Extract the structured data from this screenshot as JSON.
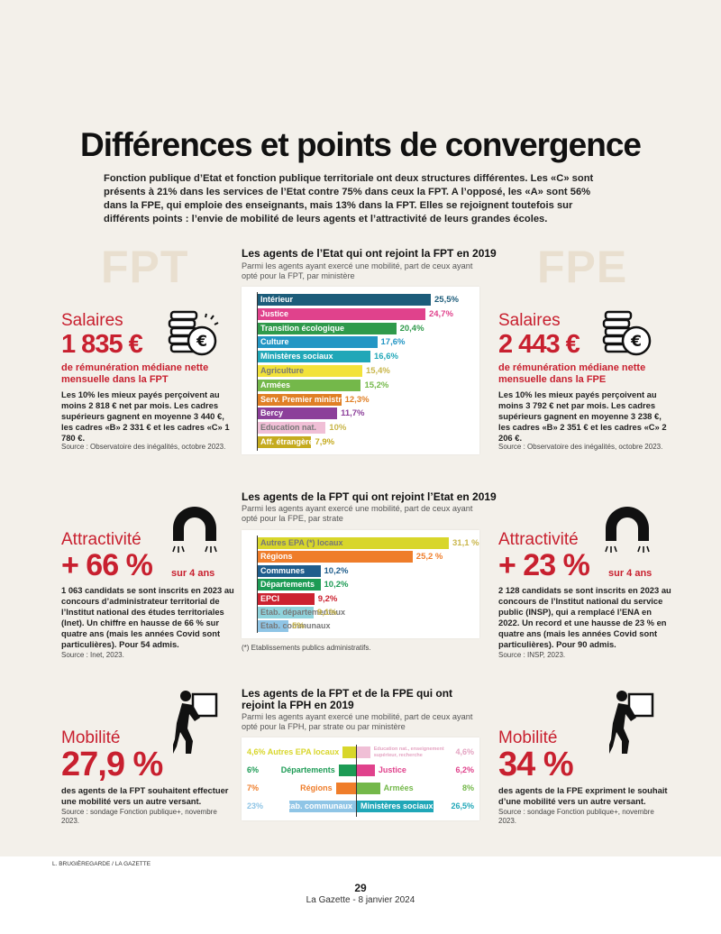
{
  "title": "Différences et points de convergence",
  "intro": "Fonction publique d’Etat et fonction publique territoriale ont deux structures différentes. Les «C» sont présents à 21% dans les services de l’Etat contre 75% dans ceux la FPT. A l’opposé, les «A» sont 56% dans la FPE, qui emploie des enseignants, mais 13% dans la FPT. Elles se rejoignent toutefois sur différents points : l’envie de mobilité de leurs agents et l’attractivité de leurs grandes écoles.",
  "ghost": {
    "left": "FPT",
    "right": "FPE"
  },
  "left": {
    "salaires": {
      "label": "Salaires",
      "value": "1 835 €",
      "sub": "de rémunération médiane nette mensuelle dans la FPT",
      "body": "Les 10% les mieux payés perçoivent au moins 2 818 € net par mois. Les cadres supérieurs gagnent en moyenne 3 440 €, les cadres «B» 2 331 € et les cadres «C» 1 780 €.",
      "source": "Source : Observatoire des inégalités, octobre 2023."
    },
    "attractivite": {
      "label": "Attractivité",
      "value": "+ 66 %",
      "suffix": "sur 4 ans",
      "body": "1 063 candidats se sont inscrits en 2023 au concours d’administrateur territorial de l’Institut national des études territoriales (Inet). Un chiffre en hausse de 66 % sur quatre ans (mais les années Covid sont particulières). Pour 54 admis.",
      "source": "Source : Inet, 2023."
    },
    "mobilite": {
      "label": "Mobilité",
      "value": "27,9 %",
      "body": "des agents de la FPT souhaitent effectuer une mobilité vers un autre versant.",
      "source": "Source : sondage Fonction publique+, novembre 2023."
    }
  },
  "right": {
    "salaires": {
      "label": "Salaires",
      "value": "2 443 €",
      "sub": "de rémunération médiane nette mensuelle dans la FPE",
      "body": "Les 10% les mieux payés perçoivent au moins 3 792 € net par mois. Les cadres supérieurs gagnent en moyenne 3 238 €, les cadres «B» 2 351 € et les cadres «C» 2 206 €.",
      "source": "Source : Observatoire des inégalités, octobre 2023."
    },
    "attractivite": {
      "label": "Attractivité",
      "value": "+ 23 %",
      "suffix": "sur 4 ans",
      "body": "2 128 candidats se sont inscrits en 2023 au concours de l’Institut national du service public (INSP), qui a remplacé l’ENA en 2022. Un record et une hausse de 23 % en quatre ans (mais les années Covid sont particulières). Pour 90 admis.",
      "source": "Source : INSP, 2023."
    },
    "mobilite": {
      "label": "Mobilité",
      "value": "34 %",
      "body": "des agents de la FPE expriment le souhait d’une mobilité vers un autre versant.",
      "source": "Source : sondage Fonction publique+, novembre 2023."
    }
  },
  "chart_data": [
    {
      "type": "bar",
      "title": "Les agents de l’Etat qui ont rejoint la FPT en 2019",
      "subtitle": "Parmi les agents ayant exercé une mobilité, part de ceux ayant opté pour la FPT, par ministère",
      "categories": [
        "Intérieur",
        "Justice",
        "Transition écologique",
        "Culture",
        "Ministères sociaux",
        "Agriculture",
        "Armées",
        "Serv. Premier ministre",
        "Bercy",
        "Education nat.",
        "Aff. étrangères"
      ],
      "values": [
        25.5,
        24.7,
        20.4,
        17.6,
        16.6,
        15.4,
        15.2,
        12.3,
        11.7,
        10,
        7.9
      ],
      "labels": [
        "25,5%",
        "24,7%",
        "20,4%",
        "17,6%",
        "16,6%",
        "15,4%",
        "15,2%",
        "12,3%",
        "11,7%",
        "10%",
        "7,9%"
      ],
      "colors": [
        "#1c5c7a",
        "#e0428c",
        "#2f9a4b",
        "#2396c4",
        "#20a7b8",
        "#f2e23a",
        "#74b84a",
        "#e07f25",
        "#8c3f9a",
        "#f0bfd6",
        "#c5ab1f"
      ]
    },
    {
      "type": "bar",
      "title": "Les agents de la FPT qui ont rejoint l’Etat en 2019",
      "subtitle": "Parmi les agents ayant exercé une mobilité, part de ceux ayant opté pour la FPE, par strate",
      "categories": [
        "Autres EPA (*) locaux",
        "Régions",
        "Communes",
        "Départements",
        "EPCI",
        "Etab. départementaux",
        "Etab. communaux"
      ],
      "values": [
        31.1,
        25.2,
        10.2,
        10.2,
        9.2,
        9.1,
        5
      ],
      "labels": [
        "31,1 %",
        "25,2 %",
        "10,2%",
        "10,2%",
        "9,2%",
        "9,1%",
        "5%"
      ],
      "colors": [
        "#d8d62b",
        "#ef7d2a",
        "#1f5d8c",
        "#1d9b55",
        "#cc2230",
        "#8fd3dc",
        "#8fc5e6"
      ],
      "note": "(*) Etablissements publics administratifs."
    },
    {
      "type": "bar",
      "title": "Les agents de la FPT et de la FPE qui ont rejoint la FPH en 2019",
      "subtitle": "Parmi les agents ayant exercé une mobilité, part de ceux ayant opté pour la FPH, par strate ou par ministère",
      "left_series": {
        "categories": [
          "Autres EPA locaux",
          "Départements",
          "Régions",
          "Etab. communaux"
        ],
        "values": [
          4.6,
          6,
          7,
          23
        ],
        "labels": [
          "4,6%",
          "6%",
          "7%",
          "23%"
        ],
        "colors": [
          "#d8d62b",
          "#1d9b55",
          "#ef7d2a",
          "#8fc5e6"
        ]
      },
      "right_series": {
        "categories": [
          "Education nat., enseignement supérieur, recherche",
          "Justice",
          "Armées",
          "Ministères sociaux"
        ],
        "values": [
          4.6,
          6.2,
          8,
          26.5
        ],
        "labels": [
          "4,6%",
          "6,2%",
          "8%",
          "26,5%"
        ],
        "colors": [
          "#f0bfd6",
          "#e0428c",
          "#74b84a",
          "#20a7b8"
        ]
      }
    }
  ],
  "footer": {
    "credit": "L. BRUGIÈREGARDE / LA GAZETTE",
    "page": "29",
    "publication": "La Gazette - 8 janvier 2024"
  }
}
